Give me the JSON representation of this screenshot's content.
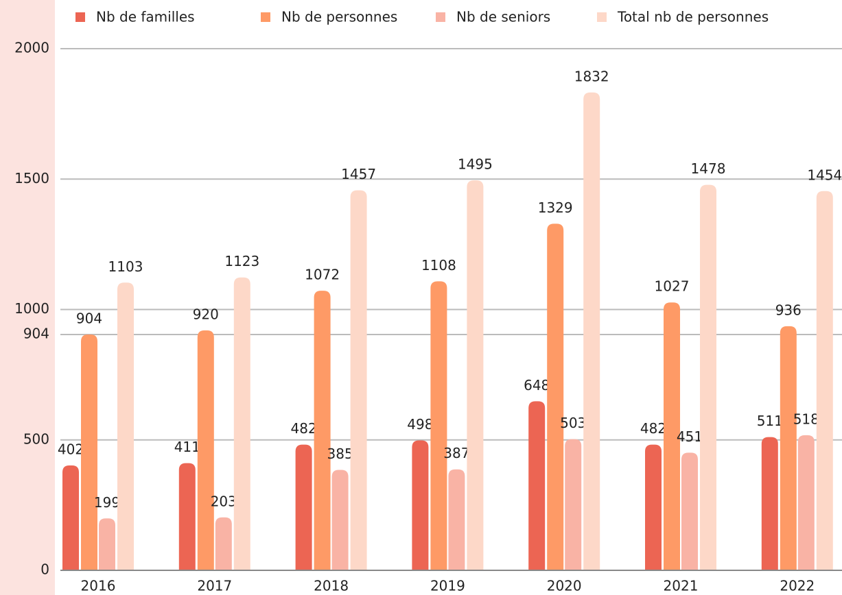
{
  "chart_data": {
    "type": "bar",
    "categories": [
      "2016",
      "2017",
      "2018",
      "2019",
      "2020",
      "2021",
      "2022"
    ],
    "series": [
      {
        "name": "Nb de familles",
        "color": "#ec6553",
        "values": [
          402,
          411,
          482,
          498,
          648,
          482,
          511
        ]
      },
      {
        "name": "Nb de personnes",
        "color": "#fe9a66",
        "values": [
          904,
          920,
          1072,
          1108,
          1329,
          1027,
          936
        ]
      },
      {
        "name": "Nb de seniors",
        "color": "#f9b3a5",
        "values": [
          199,
          203,
          385,
          387,
          503,
          451,
          518
        ]
      },
      {
        "name": "Total nb de personnes",
        "color": "#fdd8c8",
        "values": [
          1103,
          1123,
          1457,
          1495,
          1832,
          1478,
          1454
        ]
      }
    ],
    "ylim": [
      0,
      2000
    ],
    "yticks": [
      0,
      500,
      904,
      1000,
      1500,
      2000
    ],
    "grid": true,
    "legend": "top"
  }
}
